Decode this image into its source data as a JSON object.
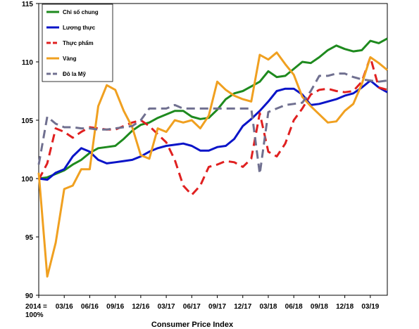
{
  "chart_data": {
    "type": "line",
    "xlabel": "Consumer Price Index",
    "ylabel": "",
    "ylim": [
      90,
      115
    ],
    "yticks": [
      90,
      95,
      100,
      105,
      110,
      115
    ],
    "x_tick_labels": [
      "2014 =\n100%",
      "03/16",
      "06/16",
      "09/16",
      "12/16",
      "03/17",
      "06/17",
      "09/17",
      "12/17",
      "03/18",
      "06/18",
      "09/18",
      "12/18",
      "03/19"
    ],
    "legend_position": "top-left",
    "grid": false,
    "series": [
      {
        "name": "Chỉ số chung",
        "color": "#1e8a1e",
        "dash": "solid",
        "values": [
          100.0,
          100.1,
          100.4,
          100.7,
          101.2,
          101.6,
          102.2,
          102.6,
          102.7,
          102.8,
          103.4,
          104.1,
          104.6,
          104.8,
          105.2,
          105.5,
          105.8,
          105.8,
          105.3,
          105.1,
          105.2,
          105.9,
          106.8,
          107.3,
          107.5,
          107.9,
          108.3,
          109.2,
          108.7,
          108.8,
          109.4,
          110.0,
          109.9,
          110.4,
          111.0,
          111.4,
          111.1,
          110.9,
          111.0,
          111.8,
          111.6,
          112.0
        ]
      },
      {
        "name": "Lương thực",
        "color": "#0a14c8",
        "dash": "solid",
        "values": [
          100.0,
          99.9,
          100.5,
          100.8,
          101.9,
          102.6,
          102.3,
          101.6,
          101.3,
          101.4,
          101.5,
          101.6,
          101.9,
          102.3,
          102.6,
          102.8,
          102.9,
          103.0,
          102.8,
          102.4,
          102.4,
          102.7,
          102.8,
          103.4,
          104.5,
          105.1,
          105.8,
          106.6,
          107.5,
          107.7,
          107.7,
          107.2,
          106.3,
          106.4,
          106.6,
          106.8,
          107.1,
          107.3,
          107.8,
          108.4,
          107.8,
          107.4
        ]
      },
      {
        "name": "Thực phẩm",
        "color": "#e02020",
        "dash": "dash",
        "values": [
          99.9,
          101.3,
          104.3,
          104.0,
          103.5,
          104.0,
          104.4,
          104.3,
          104.2,
          104.2,
          104.5,
          104.8,
          105.0,
          104.5,
          103.8,
          103.1,
          101.6,
          99.4,
          98.6,
          99.4,
          101.0,
          101.2,
          101.5,
          101.4,
          101.0,
          101.7,
          105.6,
          102.3,
          101.9,
          103.0,
          105.0,
          106.0,
          107.2,
          107.6,
          107.7,
          107.5,
          107.4,
          107.5,
          108.3,
          110.4,
          107.8,
          107.6
        ]
      },
      {
        "name": "Vàng",
        "color": "#f0a020",
        "dash": "solid",
        "values": [
          100.5,
          91.6,
          94.5,
          99.1,
          99.4,
          100.8,
          100.8,
          106.2,
          108.0,
          107.6,
          105.8,
          104.4,
          102.0,
          101.7,
          104.3,
          104.0,
          105.0,
          104.8,
          105.0,
          104.3,
          105.4,
          108.3,
          107.6,
          107.1,
          106.8,
          106.6,
          110.6,
          110.2,
          110.8,
          109.8,
          108.9,
          107.0,
          106.2,
          105.5,
          104.8,
          104.9,
          105.8,
          106.4,
          108.1,
          110.4,
          109.9,
          109.3
        ]
      },
      {
        "name": "Đô la Mỹ",
        "color": "#707090",
        "dash": "dash",
        "values": [
          101.2,
          105.3,
          104.7,
          104.4,
          104.4,
          104.3,
          104.3,
          104.2,
          104.2,
          104.3,
          104.4,
          104.5,
          105.0,
          106.0,
          106.0,
          106.0,
          106.3,
          106.0,
          106.0,
          106.0,
          106.0,
          106.0,
          106.0,
          106.0,
          106.0,
          106.0,
          100.4,
          105.7,
          106.0,
          106.3,
          106.4,
          106.5,
          107.5,
          108.8,
          108.8,
          109.0,
          109.0,
          108.7,
          108.5,
          108.4,
          108.3,
          108.4
        ]
      }
    ]
  }
}
